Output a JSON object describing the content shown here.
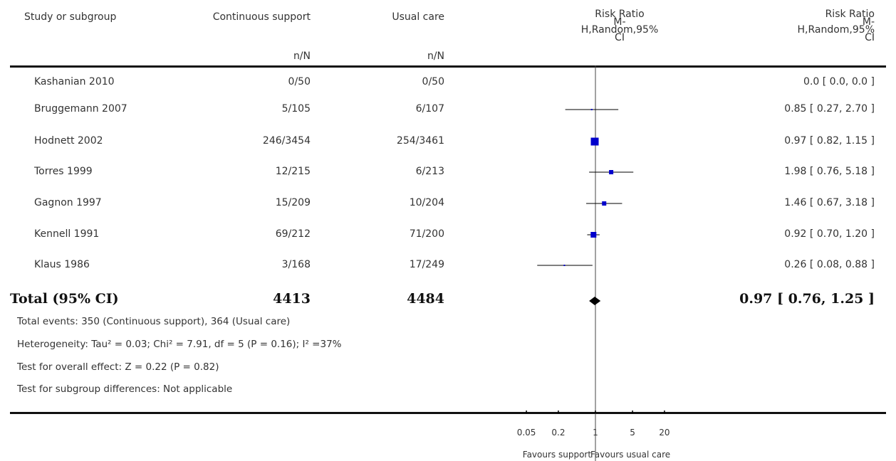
{
  "headers": {
    "study": "Study or subgroup",
    "exp": "Continuous support",
    "ctrl": "Usual care",
    "exp_sub": "n/N",
    "ctrl_sub": "n/N",
    "rr_plot": [
      "Risk Ratio",
      "M-",
      "H,Random,95%",
      "CI"
    ],
    "rr_text": [
      "Risk Ratio",
      "M-",
      "H,Random,95%",
      "CI"
    ]
  },
  "studies": [
    {
      "name": "Kashanian 2010",
      "exp": "0/50",
      "ctrl": "0/50",
      "rr_text": "0.0 [ 0.0, 0.0 ]"
    },
    {
      "name": "Bruggemann 2007",
      "exp": "5/105",
      "ctrl": "6/107",
      "rr_text": "0.85 [ 0.27, 2.70 ]"
    },
    {
      "name": "Hodnett 2002",
      "exp": "246/3454",
      "ctrl": "254/3461",
      "rr_text": "0.97 [ 0.82, 1.15 ]"
    },
    {
      "name": "Torres 1999",
      "exp": "12/215",
      "ctrl": "6/213",
      "rr_text": "1.98 [ 0.76, 5.18 ]"
    },
    {
      "name": "Gagnon 1997",
      "exp": "15/209",
      "ctrl": "10/204",
      "rr_text": "1.46 [ 0.67, 3.18 ]"
    },
    {
      "name": "Kennell 1991",
      "exp": "69/212",
      "ctrl": "71/200",
      "rr_text": "0.92 [ 0.70, 1.20 ]"
    },
    {
      "name": "Klaus 1986",
      "exp": "3/168",
      "ctrl": "17/249",
      "rr_text": "0.26 [ 0.08, 0.88 ]"
    }
  ],
  "total": {
    "label": "Total (95% CI)",
    "exp": "4413",
    "ctrl": "4484",
    "rr_text": "0.97 [ 0.76, 1.25 ]"
  },
  "notes": {
    "events": "Total events: 350 (Continuous support), 364 (Usual care)",
    "heterogeneity": "Heterogeneity: Tau² = 0.03; Chi² = 7.91, df = 5 (P = 0.16); I² =37%",
    "overall": "Test for overall effect: Z = 0.22 (P = 0.82)",
    "subgroup": "Test for subgroup differences: Not applicable"
  },
  "axis": {
    "tick_labels": [
      "0.05",
      "0.2",
      "1",
      "5",
      "20"
    ],
    "favours_left": "Favours support",
    "favours_right": "Favours usual care"
  },
  "colors": {
    "marker": "#0000cc",
    "diamond": "#000000"
  },
  "chart_data": {
    "type": "forest",
    "x_scale": "log",
    "xlim": [
      0.05,
      20
    ],
    "ticks": [
      0.05,
      0.2,
      1,
      5,
      20
    ],
    "null_line": 1,
    "studies": [
      {
        "name": "Kashanian 2010",
        "rr": null,
        "lo": null,
        "hi": null
      },
      {
        "name": "Bruggemann 2007",
        "rr": 0.85,
        "lo": 0.27,
        "hi": 2.7
      },
      {
        "name": "Hodnett 2002",
        "rr": 0.97,
        "lo": 0.82,
        "hi": 1.15
      },
      {
        "name": "Torres 1999",
        "rr": 1.98,
        "lo": 0.76,
        "hi": 5.18
      },
      {
        "name": "Gagnon 1997",
        "rr": 1.46,
        "lo": 0.67,
        "hi": 3.18
      },
      {
        "name": "Kennell 1991",
        "rr": 0.92,
        "lo": 0.7,
        "hi": 1.2
      },
      {
        "name": "Klaus 1986",
        "rr": 0.26,
        "lo": 0.08,
        "hi": 0.88
      }
    ],
    "pooled": {
      "rr": 0.97,
      "lo": 0.76,
      "hi": 1.25
    }
  }
}
